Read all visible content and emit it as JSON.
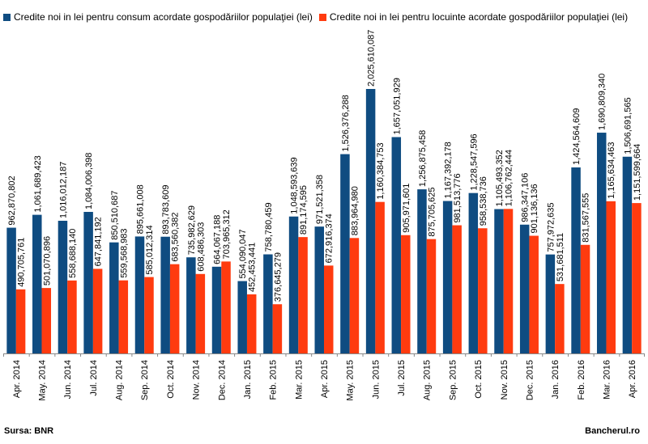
{
  "legend": {
    "series1_label": "Credite noi in lei pentru consum acordate gospodăriilor populaţiei (lei)",
    "series2_label": "Credite noi in lei pentru locuinte acordate gospodăriilor populaţiei (lei)"
  },
  "footer": {
    "source": "Sursa: BNR",
    "brand": "Bancherul.ro"
  },
  "colors": {
    "series1": "#0F4C81",
    "series2": "#FF3B0F"
  },
  "chart_data": {
    "type": "bar",
    "title": "",
    "xlabel": "",
    "ylabel": "",
    "ylim": [
      0,
      2200000000
    ],
    "grid": false,
    "legend_position": "top-left",
    "categories": [
      "Apr. 2014",
      "May. 2014",
      "Jun. 2014",
      "Jul. 2014",
      "Aug. 2014",
      "Sep. 2014",
      "Oct. 2014",
      "Nov. 2014",
      "Dec. 2014",
      "Jan. 2015",
      "Feb. 2015",
      "Mar. 2015",
      "Apr. 2015",
      "May. 2015",
      "Jun. 2015",
      "Jul. 2015",
      "Aug. 2015",
      "Sep. 2015",
      "Oct. 2015",
      "Nov. 2015",
      "Dec. 2015",
      "Jan. 2016",
      "Feb. 2016",
      "Mar. 2016",
      "Apr. 2016"
    ],
    "series": [
      {
        "name": "Credite noi in lei pentru consum acordate gospodăriilor populaţiei (lei)",
        "values": [
          962870802,
          1061689423,
          1016012187,
          1084006398,
          850510687,
          895661008,
          893783609,
          735982629,
          664067188,
          554090047,
          758780459,
          1048593639,
          971521358,
          1526376288,
          2025610087,
          1657051929,
          1256875458,
          1167392178,
          1228547596,
          1105493352,
          986347106,
          757972635,
          1424564609,
          1690809340,
          1506691565
        ],
        "labels": [
          "962,870,802",
          "1,061,689,423",
          "1,016,012,187",
          "1,084,006,398",
          "850,510,687",
          "895,661,008",
          "893,783,609",
          "735,982,629",
          "664,067,188",
          "554,090,047",
          "758,780,459",
          "1,048,593,639",
          "971,521,358",
          "1,526,376,288",
          "2,025,610,087",
          "1,657,051,929",
          "1,256,875,458",
          "1,167,392,178",
          "1,228,547,596",
          "1,105,493,352",
          "986,347,106",
          "757,972,635",
          "1,424,564,609",
          "1,690,809,340",
          "1,506,691,565"
        ]
      },
      {
        "name": "Credite noi in lei pentru locuinte acordate gospodăriilor populaţiei (lei)",
        "values": [
          490705761,
          501070896,
          558688140,
          647841192,
          559568983,
          585012314,
          683560382,
          608486303,
          703965312,
          452453441,
          376645279,
          891174595,
          672916374,
          883964980,
          1160384753,
          905971601,
          875705625,
          981513776,
          958538736,
          1106762444,
          901136136,
          531681511,
          831567555,
          1165634463,
          1151599664
        ],
        "labels": [
          "490,705,761",
          "501,070,896",
          "558,688,140",
          "647,841,192",
          "559,568,983",
          "585,012,314",
          "683,560,382",
          "608,486,303",
          "703,965,312",
          "452,453,441",
          "376,645,279",
          "891,174,595",
          "672,916,374",
          "883,964,980",
          "1,160,384,753",
          "905,971,601",
          "875,705,625",
          "981,513,776",
          "958,538,736",
          "1,106,762,444",
          "901,136,136",
          "531,681,511",
          "831,567,555",
          "1,165,634,463",
          "1,151,599,664"
        ]
      }
    ]
  }
}
